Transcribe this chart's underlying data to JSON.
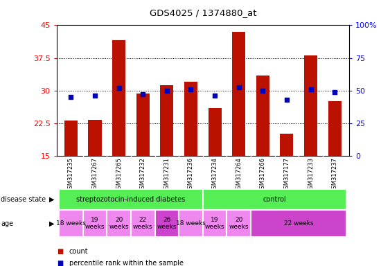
{
  "title": "GDS4025 / 1374880_at",
  "samples": [
    "GSM317235",
    "GSM317267",
    "GSM317265",
    "GSM317232",
    "GSM317231",
    "GSM317236",
    "GSM317234",
    "GSM317264",
    "GSM317266",
    "GSM317177",
    "GSM317233",
    "GSM317237"
  ],
  "counts": [
    23.0,
    23.2,
    41.5,
    29.3,
    31.2,
    32.0,
    26.0,
    43.5,
    33.5,
    20.0,
    38.0,
    27.5
  ],
  "percentiles": [
    28.5,
    28.8,
    30.5,
    29.2,
    30.0,
    30.2,
    28.8,
    30.8,
    30.0,
    27.8,
    30.3,
    29.6
  ],
  "ylim_left": [
    15,
    45
  ],
  "ylim_right": [
    0,
    100
  ],
  "yticks_left": [
    15,
    22.5,
    30,
    37.5,
    45
  ],
  "yticks_right": [
    0,
    25,
    50,
    75,
    100
  ],
  "bar_color": "#bb1100",
  "dot_color": "#0000bb",
  "disease_state_labels": [
    "streptozotocin-induced diabetes",
    "control"
  ],
  "disease_state_color": "#55ee55",
  "disease_state_border": "#ffffff",
  "age_groups": [
    {
      "start": 0,
      "end": 0,
      "label": "18 weeks",
      "color": "#ee88ee"
    },
    {
      "start": 1,
      "end": 1,
      "label": "19\nweeks",
      "color": "#ee88ee"
    },
    {
      "start": 2,
      "end": 2,
      "label": "20\nweeks",
      "color": "#ee88ee"
    },
    {
      "start": 3,
      "end": 3,
      "label": "22\nweeks",
      "color": "#ee88ee"
    },
    {
      "start": 4,
      "end": 4,
      "label": "26\nweeks",
      "color": "#cc44cc"
    },
    {
      "start": 5,
      "end": 5,
      "label": "18 weeks",
      "color": "#ee88ee"
    },
    {
      "start": 6,
      "end": 6,
      "label": "19\nweeks",
      "color": "#ee88ee"
    },
    {
      "start": 7,
      "end": 7,
      "label": "20\nweeks",
      "color": "#ee88ee"
    },
    {
      "start": 8,
      "end": 11,
      "label": "22 weeks",
      "color": "#cc44cc"
    }
  ],
  "sample_bg_color": "#cccccc",
  "background_color": "#ffffff",
  "legend_count_color": "#bb1100",
  "legend_dot_color": "#0000bb"
}
